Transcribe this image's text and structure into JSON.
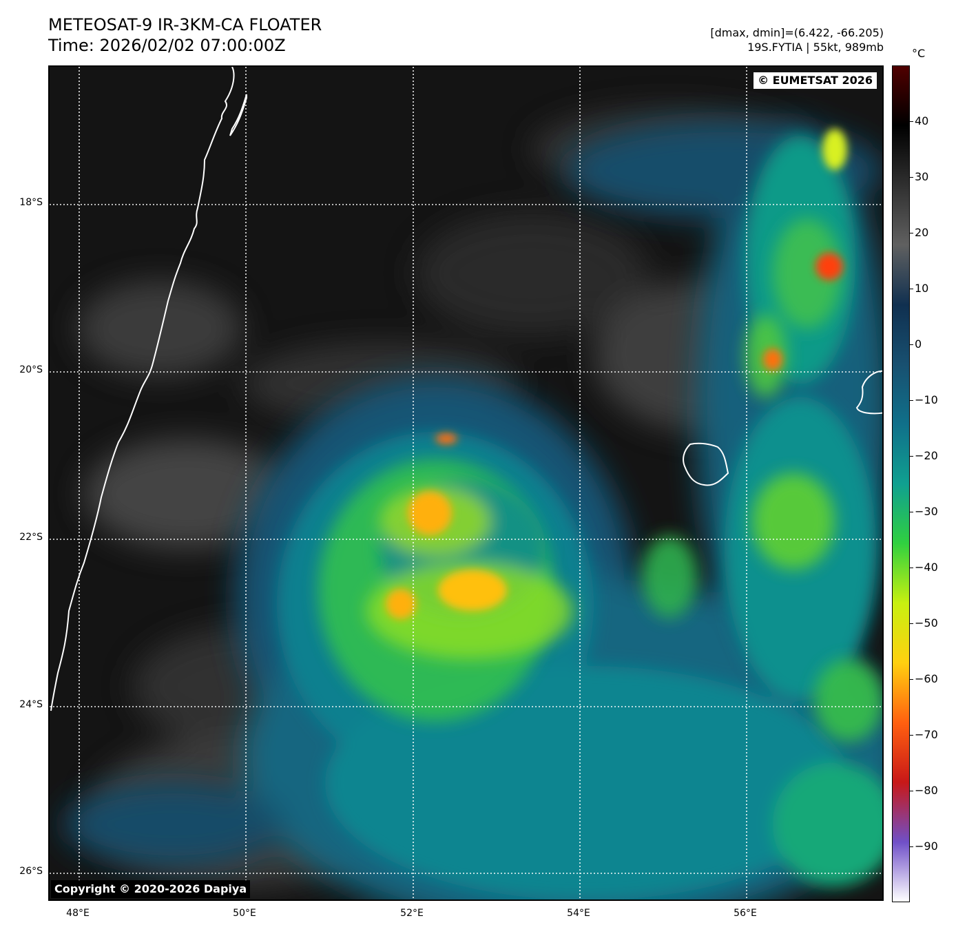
{
  "title": {
    "line1": "METEOSAT-9 IR-3KM-CA FLOATER",
    "line2": "Time: 2026/02/02 07:00:00Z"
  },
  "info": {
    "dmax_dmin": "[dmax, dmin]=(6.422, -66.205)",
    "storm": "19S.FYTIA | 55kt, 989mb"
  },
  "badges": {
    "eumetsat": "© EUMETSAT 2026",
    "copyright": "Copyright © 2020-2026 Dapiya"
  },
  "axes": {
    "lat_labels": [
      "18°S",
      "20°S",
      "22°S",
      "24°S",
      "26°S"
    ],
    "lon_labels": [
      "48°E",
      "50°E",
      "52°E",
      "54°E",
      "56°E"
    ]
  },
  "colorbar": {
    "unit": "°C",
    "tick_labels": [
      "40",
      "30",
      "20",
      "10",
      "0",
      "−10",
      "−20",
      "−30",
      "−40",
      "−50",
      "−60",
      "−70",
      "−80",
      "−90"
    ],
    "tick_values": [
      40,
      30,
      20,
      10,
      0,
      -10,
      -20,
      -30,
      -40,
      -50,
      -60,
      -70,
      -80,
      -90
    ],
    "range": [
      -100,
      50
    ],
    "colors": [
      "#ffffff",
      "#7050c8",
      "#c81818",
      "#ff6010",
      "#ffd010",
      "#c8f010",
      "#30d040",
      "#10a090",
      "#10708a",
      "#185070",
      "#103050",
      "#606060",
      "#303030",
      "#000000",
      "#500000"
    ]
  }
}
